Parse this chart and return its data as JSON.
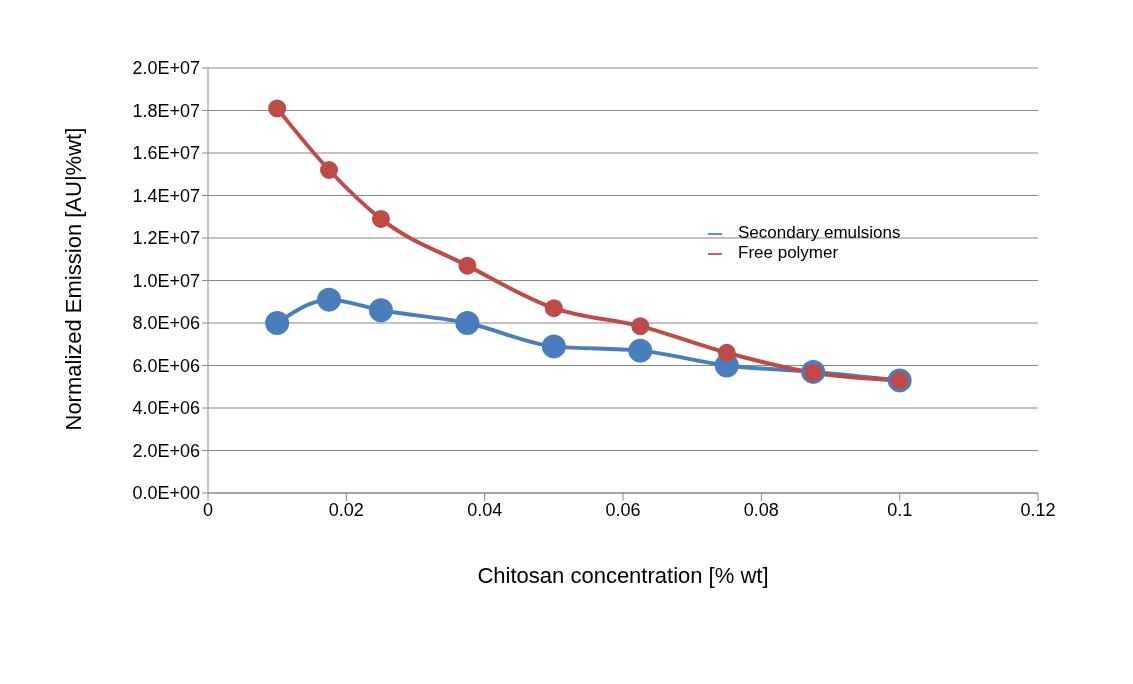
{
  "chart_data": {
    "type": "line",
    "xlabel": "Chitosan concentration [% wt]",
    "ylabel": "Normalized Emission  [AU|%wt]",
    "x": [
      0.01,
      0.0175,
      0.025,
      0.0375,
      0.05,
      0.0625,
      0.075,
      0.0875,
      0.1
    ],
    "series": [
      {
        "name": "Secondary emulsions",
        "color": "#4a7ebb",
        "values": [
          8000000.0,
          9100000.0,
          8600000.0,
          8000000.0,
          6900000.0,
          6700000.0,
          6000000.0,
          5700000.0,
          5300000.0
        ]
      },
      {
        "name": "Free polymer",
        "color": "#be4b48",
        "values": [
          18100000.0,
          15200000.0,
          12900000.0,
          10700000.0,
          8700000.0,
          7850000.0,
          6600000.0,
          5660000.0,
          5300000.0
        ]
      }
    ],
    "xlim": [
      0,
      0.12
    ],
    "xticks": [
      0,
      0.02,
      0.04,
      0.06,
      0.08,
      0.1,
      0.12
    ],
    "ylim": [
      0,
      20000000.0
    ],
    "yticks": [
      {
        "value": 0,
        "label": "0.0E+00"
      },
      {
        "value": 2000000.0,
        "label": "2.0E+06"
      },
      {
        "value": 4000000.0,
        "label": "4.0E+06"
      },
      {
        "value": 6000000.0,
        "label": "6.0E+06"
      },
      {
        "value": 8000000.0,
        "label": "8.0E+06"
      },
      {
        "value": 10000000.0,
        "label": "1.0E+07"
      },
      {
        "value": 12000000.0,
        "label": "1.2E+07"
      },
      {
        "value": 14000000.0,
        "label": "1.4E+07"
      },
      {
        "value": 16000000.0,
        "label": "1.6E+07"
      },
      {
        "value": 18000000.0,
        "label": "1.8E+07"
      },
      {
        "value": 20000000.0,
        "label": "2.0E+07"
      }
    ],
    "grid": "y",
    "legend": "right",
    "marker": "circle",
    "line_style": "solid"
  }
}
